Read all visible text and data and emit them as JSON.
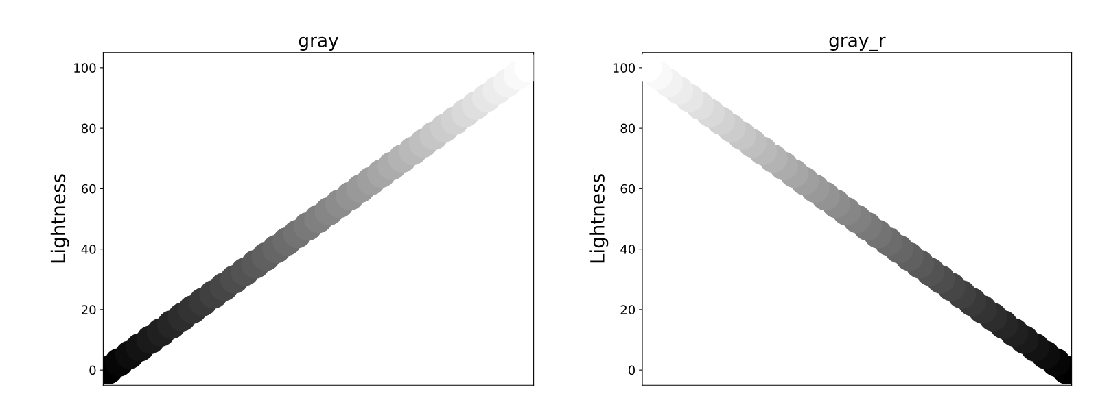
{
  "chart_data": [
    {
      "type": "scatter",
      "title": "gray",
      "ylabel": "Lightness",
      "marker": "circle",
      "tick_labels": "y",
      "grid": false,
      "legend": false,
      "categories": [
        null,
        null,
        null,
        null,
        null,
        null,
        null,
        null,
        null,
        null,
        null,
        null,
        null,
        null,
        null,
        null,
        null,
        null,
        null,
        null,
        null,
        null,
        null,
        null,
        null,
        null,
        null,
        null,
        null,
        null,
        null,
        null,
        null,
        null,
        null,
        null,
        null,
        null,
        null,
        null,
        null
      ],
      "values": [
        0,
        2.5,
        5,
        7.5,
        10,
        12.5,
        15,
        17.5,
        20,
        22.5,
        25,
        27.5,
        30,
        32.5,
        35,
        37.5,
        40,
        42.5,
        45,
        47.5,
        50,
        52.5,
        55,
        57.5,
        60,
        62.5,
        65,
        67.5,
        70,
        72.5,
        75,
        77.5,
        80,
        82.5,
        85,
        87.5,
        90,
        92.5,
        95,
        97.5,
        100
      ],
      "colors": [
        "#000000",
        "#060606",
        "#0d0d0d",
        "#131313",
        "#1a1a1a",
        "#202020",
        "#262626",
        "#2d2d2d",
        "#333333",
        "#393939",
        "#404040",
        "#464646",
        "#4d4d4d",
        "#535353",
        "#595959",
        "#606060",
        "#666666",
        "#6c6c6c",
        "#737373",
        "#797979",
        "#808080",
        "#868686",
        "#8c8c8c",
        "#939393",
        "#999999",
        "#9f9f9f",
        "#a6a6a6",
        "#acacac",
        "#b3b3b3",
        "#b9b9b9",
        "#bfbfbf",
        "#c6c6c6",
        "#cccccc",
        "#d2d2d2",
        "#d9d9d9",
        "#dfdfdf",
        "#e6e6e6",
        "#ececec",
        "#f2f2f2",
        "#f9f9f9",
        "#ffffff"
      ],
      "ylim": [
        -5,
        105
      ],
      "yticks": [
        0,
        20,
        40,
        60,
        80,
        100
      ]
    },
    {
      "type": "scatter",
      "title": "gray_r",
      "ylabel": "Lightness",
      "marker": "circle",
      "tick_labels": "y",
      "grid": false,
      "legend": false,
      "categories": [
        null,
        null,
        null,
        null,
        null,
        null,
        null,
        null,
        null,
        null,
        null,
        null,
        null,
        null,
        null,
        null,
        null,
        null,
        null,
        null,
        null,
        null,
        null,
        null,
        null,
        null,
        null,
        null,
        null,
        null,
        null,
        null,
        null,
        null,
        null,
        null,
        null,
        null,
        null,
        null,
        null
      ],
      "values": [
        100,
        97.5,
        95,
        92.5,
        90,
        87.5,
        85,
        82.5,
        80,
        77.5,
        75,
        72.5,
        70,
        67.5,
        65,
        62.5,
        60,
        57.5,
        55,
        52.5,
        50,
        47.5,
        45,
        42.5,
        40,
        37.5,
        35,
        32.5,
        30,
        27.5,
        25,
        22.5,
        20,
        17.5,
        15,
        12.5,
        10,
        7.5,
        5,
        2.5,
        0
      ],
      "colors": [
        "#ffffff",
        "#f9f9f9",
        "#f2f2f2",
        "#ececec",
        "#e6e6e6",
        "#dfdfdf",
        "#d9d9d9",
        "#d2d2d2",
        "#cccccc",
        "#c6c6c6",
        "#bfbfbf",
        "#b9b9b9",
        "#b3b3b3",
        "#acacac",
        "#a6a6a6",
        "#9f9f9f",
        "#999999",
        "#939393",
        "#8c8c8c",
        "#868686",
        "#808080",
        "#797979",
        "#737373",
        "#6c6c6c",
        "#666666",
        "#606060",
        "#595959",
        "#535353",
        "#4d4d4d",
        "#464646",
        "#404040",
        "#393939",
        "#333333",
        "#2d2d2d",
        "#262626",
        "#202020",
        "#1a1a1a",
        "#131313",
        "#0d0d0d",
        "#060606",
        "#000000"
      ],
      "ylim": [
        -5,
        105
      ],
      "yticks": [
        0,
        20,
        40,
        60,
        80,
        100
      ]
    }
  ]
}
